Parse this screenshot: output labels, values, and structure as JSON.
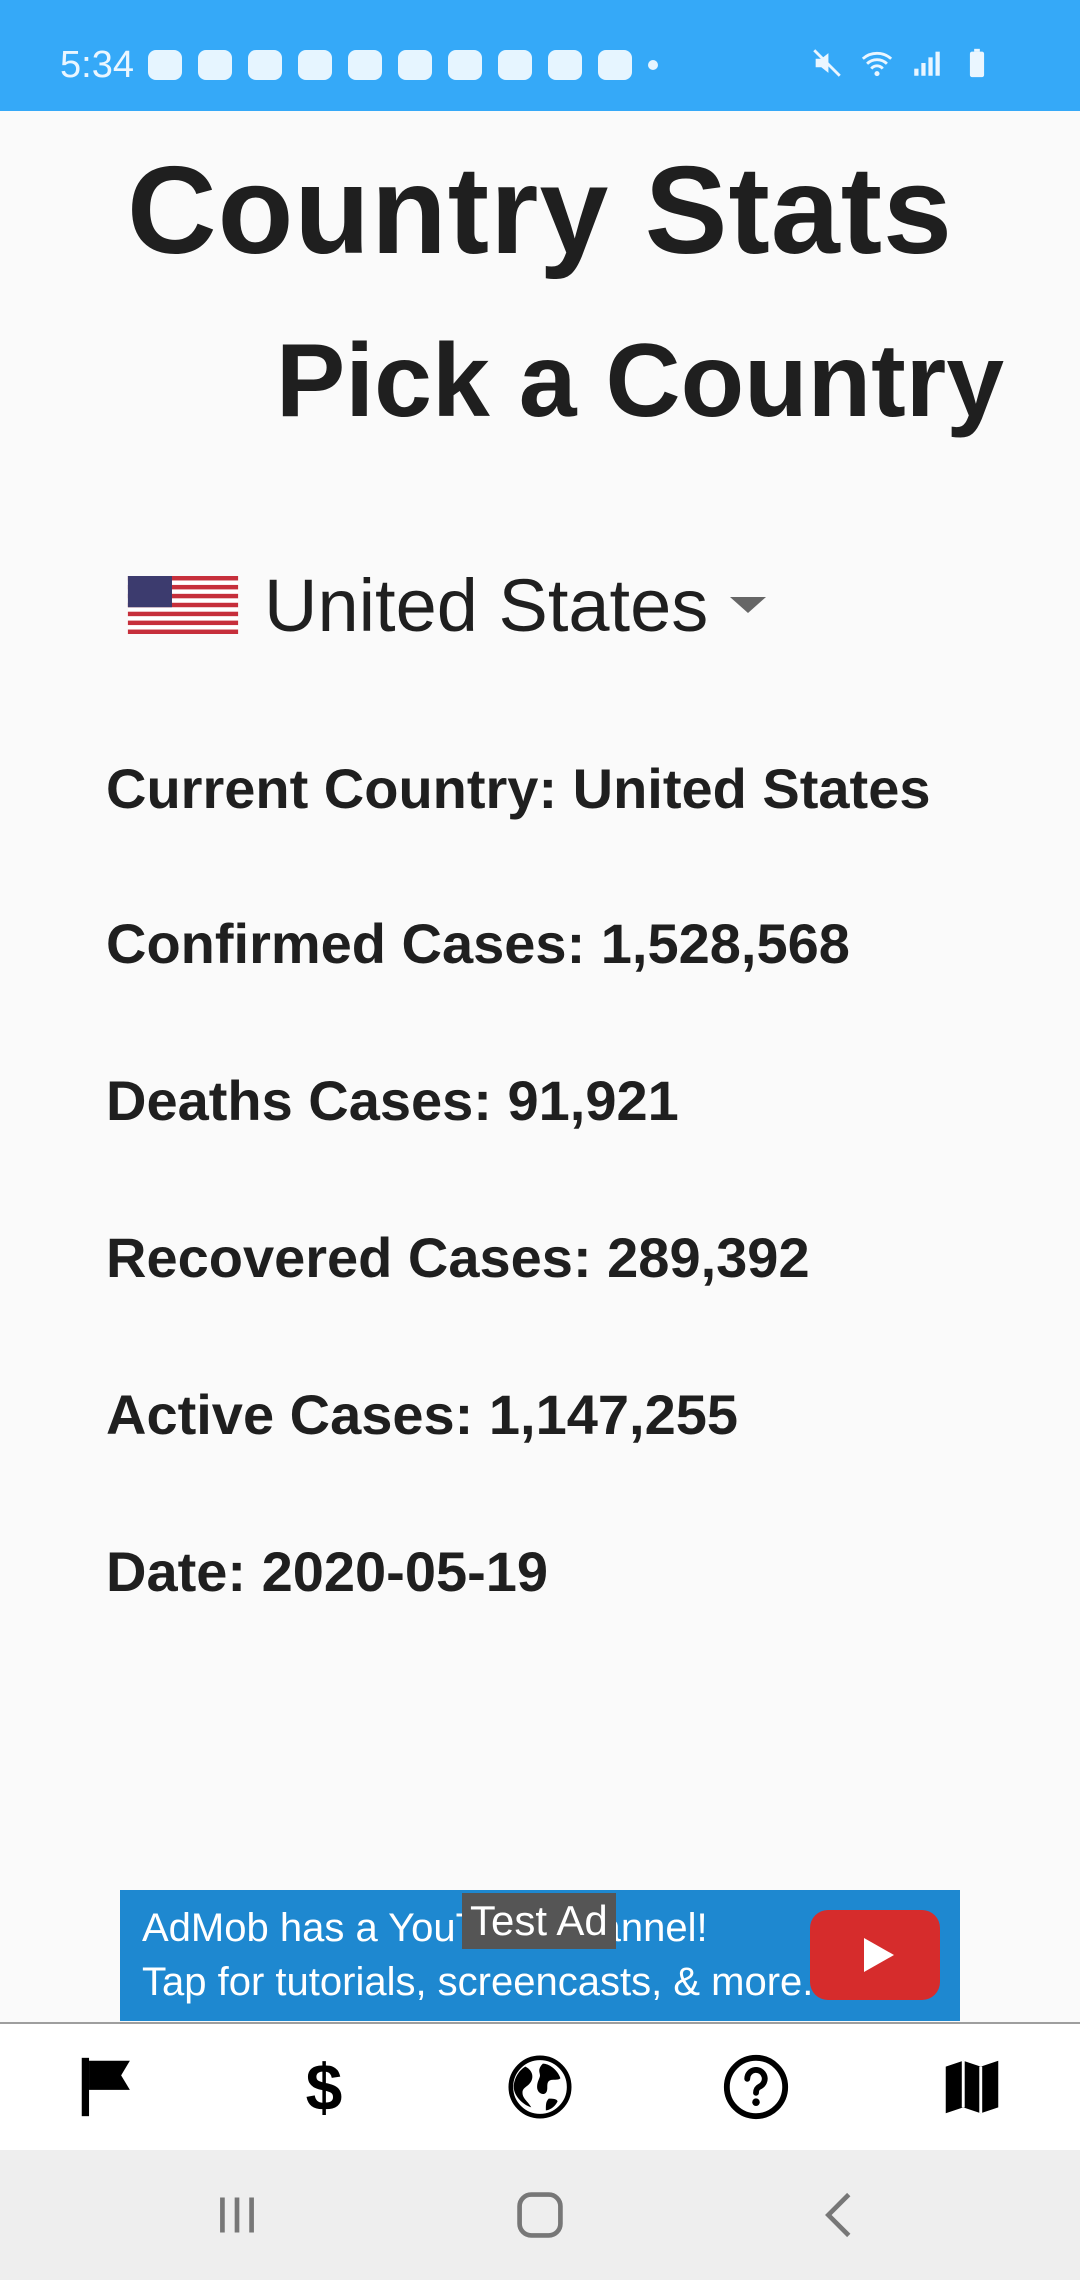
{
  "status_bar": {
    "time": "5:34",
    "background": "#35a9f8"
  },
  "header": {
    "title": "Country Stats",
    "subtitle": "Pick a Country"
  },
  "country_select": {
    "selected": "United States",
    "flag_icon": "us-flag-icon"
  },
  "stats": {
    "current_country": "Current Country: United States",
    "confirmed": "Confirmed Cases: 1,528,568",
    "deaths": "Deaths Cases: 91,921",
    "recovered": "Recovered Cases: 289,392",
    "active": "Active Cases: 1,147,255",
    "date": "Date: 2020-05-19"
  },
  "ad": {
    "line1": "AdMob has a YouTube channel!",
    "line2": "Tap for tutorials, screencasts, & more.",
    "badge": "Test Ad",
    "background": "#1e88d0"
  },
  "bottom_nav": {
    "items": [
      {
        "icon": "flag-icon"
      },
      {
        "icon": "dollar-icon",
        "glyph": "$"
      },
      {
        "icon": "globe-icon"
      },
      {
        "icon": "help-icon"
      },
      {
        "icon": "map-icon"
      }
    ]
  },
  "system_nav": {
    "buttons": [
      "recents-icon",
      "home-icon",
      "back-icon"
    ]
  }
}
